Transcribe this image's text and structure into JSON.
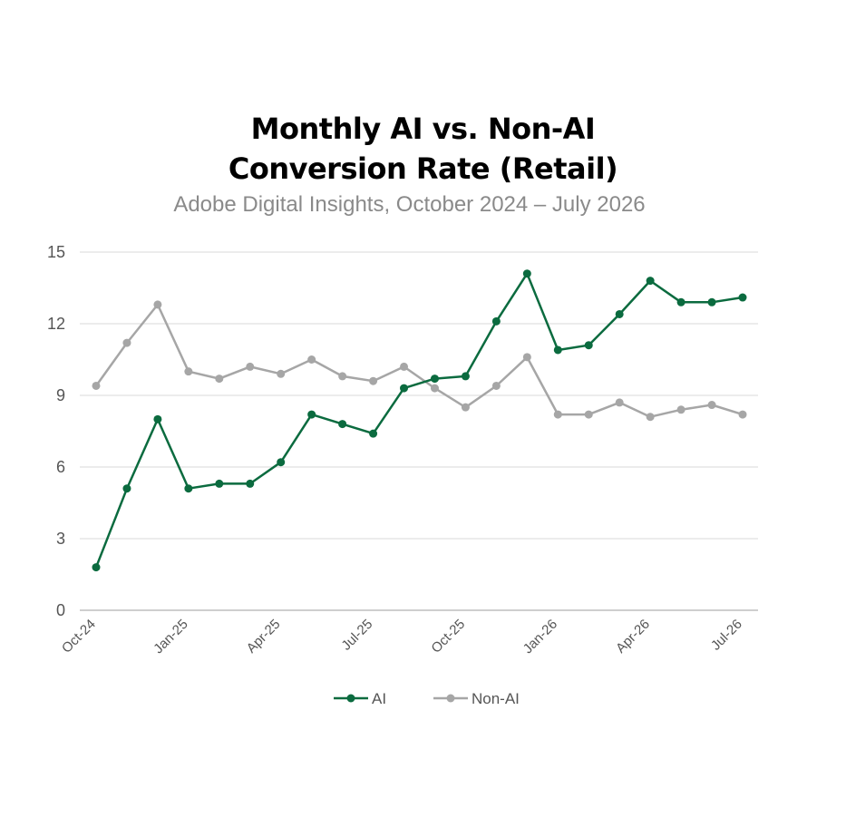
{
  "chart_data": {
    "type": "line",
    "title_line1": "Monthly AI vs. Non-AI",
    "title_line2": "Conversion Rate (Retail)",
    "subtitle": "Adobe Digital Insights, October 2024 – July 2026",
    "x": [
      "Oct-24",
      "Nov-24",
      "Dec-24",
      "Jan-25",
      "Feb-25",
      "Mar-25",
      "Apr-25",
      "May-25",
      "Jun-25",
      "Jul-25",
      "Aug-25",
      "Sep-25",
      "Oct-25",
      "Nov-25",
      "Dec-25",
      "Jan-26",
      "Feb-26",
      "Mar-26",
      "Apr-26",
      "May-26",
      "Jun-26",
      "Jul-26"
    ],
    "x_tick_labels": [
      "Oct-24",
      "Jan-25",
      "Apr-25",
      "Jul-25",
      "Oct-25",
      "Jan-26",
      "Apr-26",
      "Jul-26"
    ],
    "y_ticks": [
      "0",
      "3",
      "6",
      "9",
      "12",
      "15"
    ],
    "ylim": [
      0,
      15
    ],
    "grid": true,
    "legend_position": "bottom",
    "series": [
      {
        "name": "AI",
        "color": "#0b6b3f",
        "values": [
          1.8,
          5.1,
          8.0,
          5.1,
          5.3,
          5.3,
          6.2,
          8.2,
          7.8,
          7.4,
          9.3,
          9.7,
          9.8,
          12.1,
          14.1,
          10.9,
          11.1,
          12.4,
          13.8,
          12.9,
          12.9,
          13.1
        ]
      },
      {
        "name": "Non-AI",
        "color": "#a6a6a6",
        "values": [
          9.4,
          11.2,
          12.8,
          10.0,
          9.7,
          10.2,
          9.9,
          10.5,
          9.8,
          9.6,
          10.2,
          9.3,
          8.5,
          9.4,
          10.6,
          8.2,
          8.2,
          8.7,
          8.1,
          8.4,
          8.6,
          8.2
        ]
      }
    ]
  }
}
